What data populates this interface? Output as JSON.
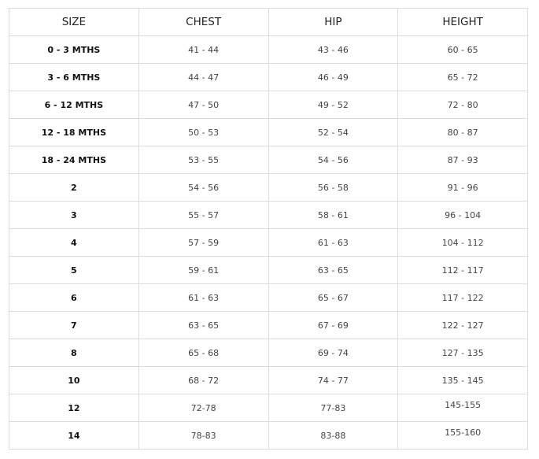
{
  "headers": [
    "SIZE",
    "CHEST",
    "HIP",
    "HEIGHT"
  ],
  "rows": [
    [
      "0 - 3 MTHS",
      "41 - 44",
      "43 - 46",
      "60 - 65"
    ],
    [
      "3 - 6 MTHS",
      "44 - 47",
      "46 - 49",
      "65 - 72"
    ],
    [
      "6 - 12 MTHS",
      "47 - 50",
      "49 - 52",
      "72 - 80"
    ],
    [
      "12 - 18 MTHS",
      "50 - 53",
      "52 - 54",
      "80 - 87"
    ],
    [
      "18 - 24 MTHS",
      "53 - 55",
      "54 - 56",
      "87 - 93"
    ],
    [
      "2",
      "54 - 56",
      "56 - 58",
      "91 - 96"
    ],
    [
      "3",
      "55 - 57",
      "58 - 61",
      "96 - 104"
    ],
    [
      "4",
      "57 - 59",
      "61 - 63",
      "104 - 112"
    ],
    [
      "5",
      "59 - 61",
      "63 - 65",
      "112 - 117"
    ],
    [
      "6",
      "61 - 63",
      "65 - 67",
      "117 - 122"
    ],
    [
      "7",
      "63 - 65",
      "67 - 69",
      "122 - 127"
    ],
    [
      "8",
      "65 - 68",
      "69 - 74",
      "127 - 135"
    ],
    [
      "10",
      "68 - 72",
      "74 - 77",
      "135 - 145"
    ],
    [
      "12",
      "72-78",
      "77-83",
      "145-155"
    ],
    [
      "14",
      "78-83",
      "83-88",
      "155-160"
    ]
  ]
}
